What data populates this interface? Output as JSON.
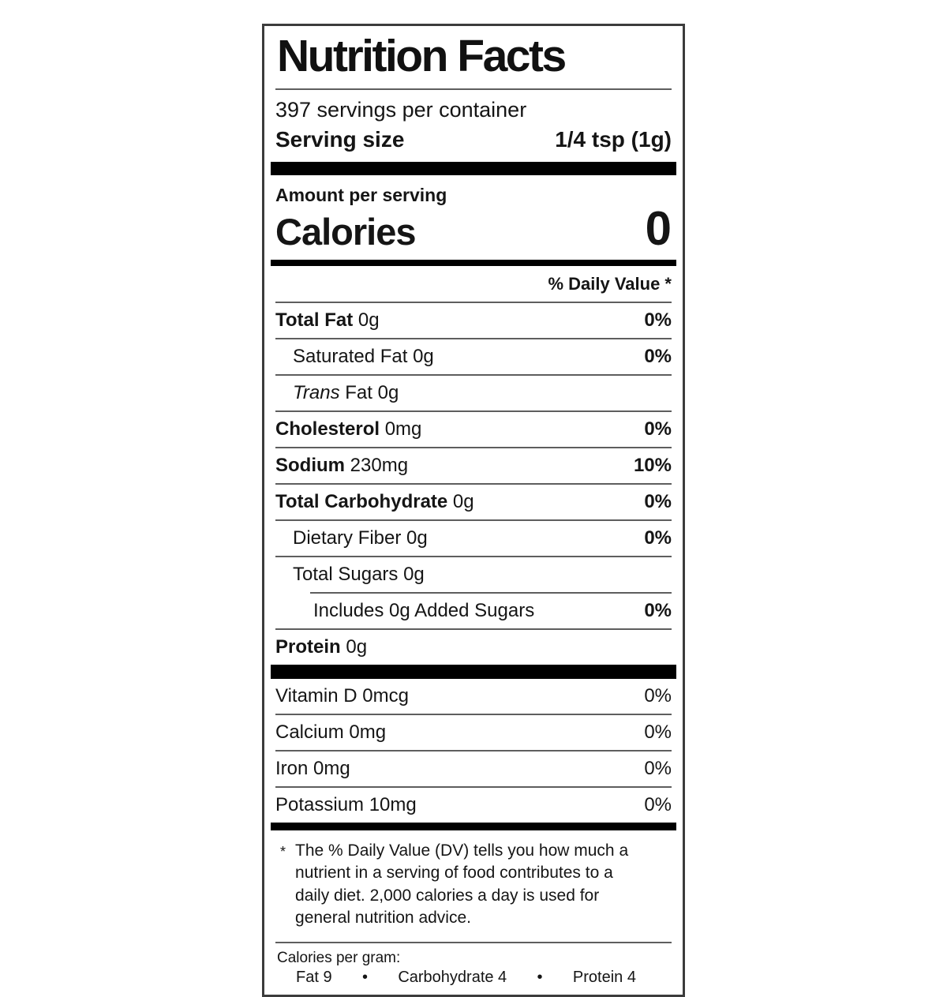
{
  "label": {
    "title": "Nutrition Facts",
    "servings_per_container": "397 servings per container",
    "serving_size": {
      "label": "Serving size",
      "value": "1/4 tsp (1g)"
    },
    "amount_per_serving": "Amount per serving",
    "calories": {
      "label": "Calories",
      "value": "0"
    },
    "daily_value_header": "% Daily Value *",
    "nutrients": [
      {
        "bold": "Total Fat",
        "text": " 0g",
        "dv": "0%"
      },
      {
        "bold": "",
        "text": "Saturated Fat 0g",
        "dv": "0%"
      },
      {
        "italic": "Trans",
        "text": " Fat 0g",
        "dv": ""
      },
      {
        "bold": "Cholesterol",
        "text": " 0mg",
        "dv": "0%"
      },
      {
        "bold": "Sodium",
        "text": " 230mg",
        "dv": "10%"
      },
      {
        "bold": "Total Carbohydrate",
        "text": " 0g",
        "dv": "0%"
      },
      {
        "bold": "",
        "text": "Dietary Fiber 0g",
        "dv": "0%"
      },
      {
        "bold": "",
        "text": "Total Sugars 0g",
        "dv": ""
      },
      {
        "bold": "",
        "text": "Includes 0g Added Sugars",
        "dv": "0%"
      },
      {
        "bold": "Protein",
        "text": " 0g",
        "dv": ""
      }
    ],
    "vitamins": [
      {
        "text": "Vitamin D 0mcg",
        "dv": "0%"
      },
      {
        "text": "Calcium 0mg",
        "dv": "0%"
      },
      {
        "text": "Iron 0mg",
        "dv": "0%"
      },
      {
        "text": "Potassium 10mg",
        "dv": "0%"
      }
    ],
    "footnote": {
      "marker": "*",
      "text": "The % Daily Value (DV) tells you how much a nutrient in a serving of food contributes to a daily diet. 2,000 calories a day is used for general nutrition advice."
    },
    "calories_per_gram": {
      "header": "Calories per gram:",
      "fat": "Fat 9",
      "bullet1": "•",
      "carbohydrate": "Carbohydrate 4",
      "bullet2": "•",
      "protein": "Protein 4"
    }
  },
  "colors": {
    "ink": "#151515",
    "bar": "#000000",
    "hairline": "#5e5e5e",
    "background": "#ffffff"
  }
}
